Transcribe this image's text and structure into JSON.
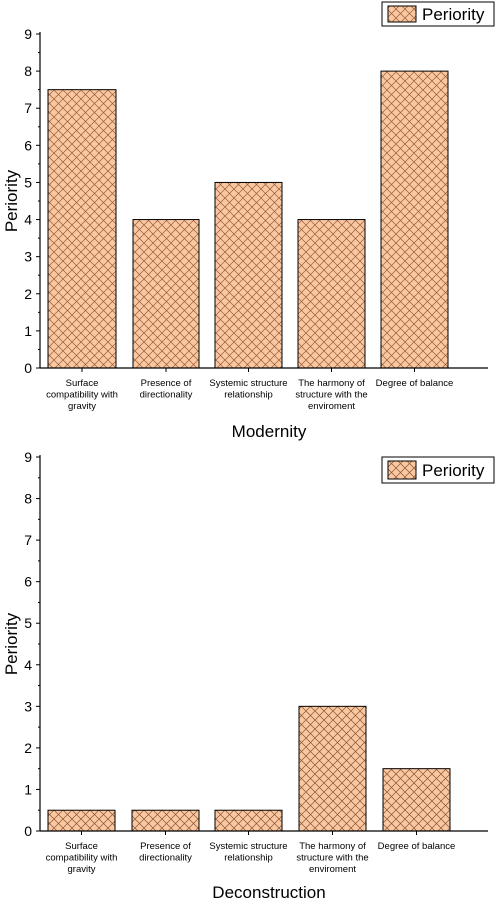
{
  "chart_data": [
    {
      "type": "bar",
      "xlabel": "Modernity",
      "ylabel": "Periority",
      "ylim": [
        0,
        9
      ],
      "yticks": [
        0,
        1,
        2,
        3,
        4,
        5,
        6,
        7,
        8,
        9
      ],
      "categories": [
        "Surface compatibility with gravity",
        "Presence of directionality",
        "Systemic structure relationship",
        "The harmony of structure with the enviroment",
        "Degree of balance"
      ],
      "category_lines": [
        [
          "Surface",
          "compatibility with",
          "gravity"
        ],
        [
          "Presence of",
          "directionality"
        ],
        [
          "Systemic structure",
          "relationship"
        ],
        [
          "The harmony of",
          "structure with the",
          "enviroment"
        ],
        [
          "Degree of balance"
        ]
      ],
      "series": [
        {
          "name": "Periority",
          "values": [
            7.5,
            4,
            5,
            4,
            8
          ]
        }
      ],
      "legend_position": "top-right",
      "bar_fill": "#f9c8a0",
      "hatch_color": "#9a5a3a",
      "grid": false
    },
    {
      "type": "bar",
      "xlabel": "Deconstruction",
      "ylabel": "Periority",
      "ylim": [
        0,
        9
      ],
      "yticks": [
        0,
        1,
        2,
        3,
        4,
        5,
        6,
        7,
        8,
        9
      ],
      "categories": [
        "Surface compatibility with gravity",
        "Presence of directionality",
        "Systemic structure relationship",
        "The harmony of structure with the enviroment",
        "Degree of balance"
      ],
      "category_lines": [
        [
          "Surface",
          "compatibility with",
          "gravity"
        ],
        [
          "Presence of",
          "directionality"
        ],
        [
          "Systemic structure",
          "relationship"
        ],
        [
          "The harmony of",
          "structure with the",
          "enviroment"
        ],
        [
          "Degree of balance"
        ]
      ],
      "series": [
        {
          "name": "Periority",
          "values": [
            0.5,
            0.5,
            0.5,
            3,
            1.5
          ]
        }
      ],
      "legend_position": "top-right",
      "bar_fill": "#f9c8a0",
      "hatch_color": "#8a5236",
      "grid": false
    }
  ]
}
